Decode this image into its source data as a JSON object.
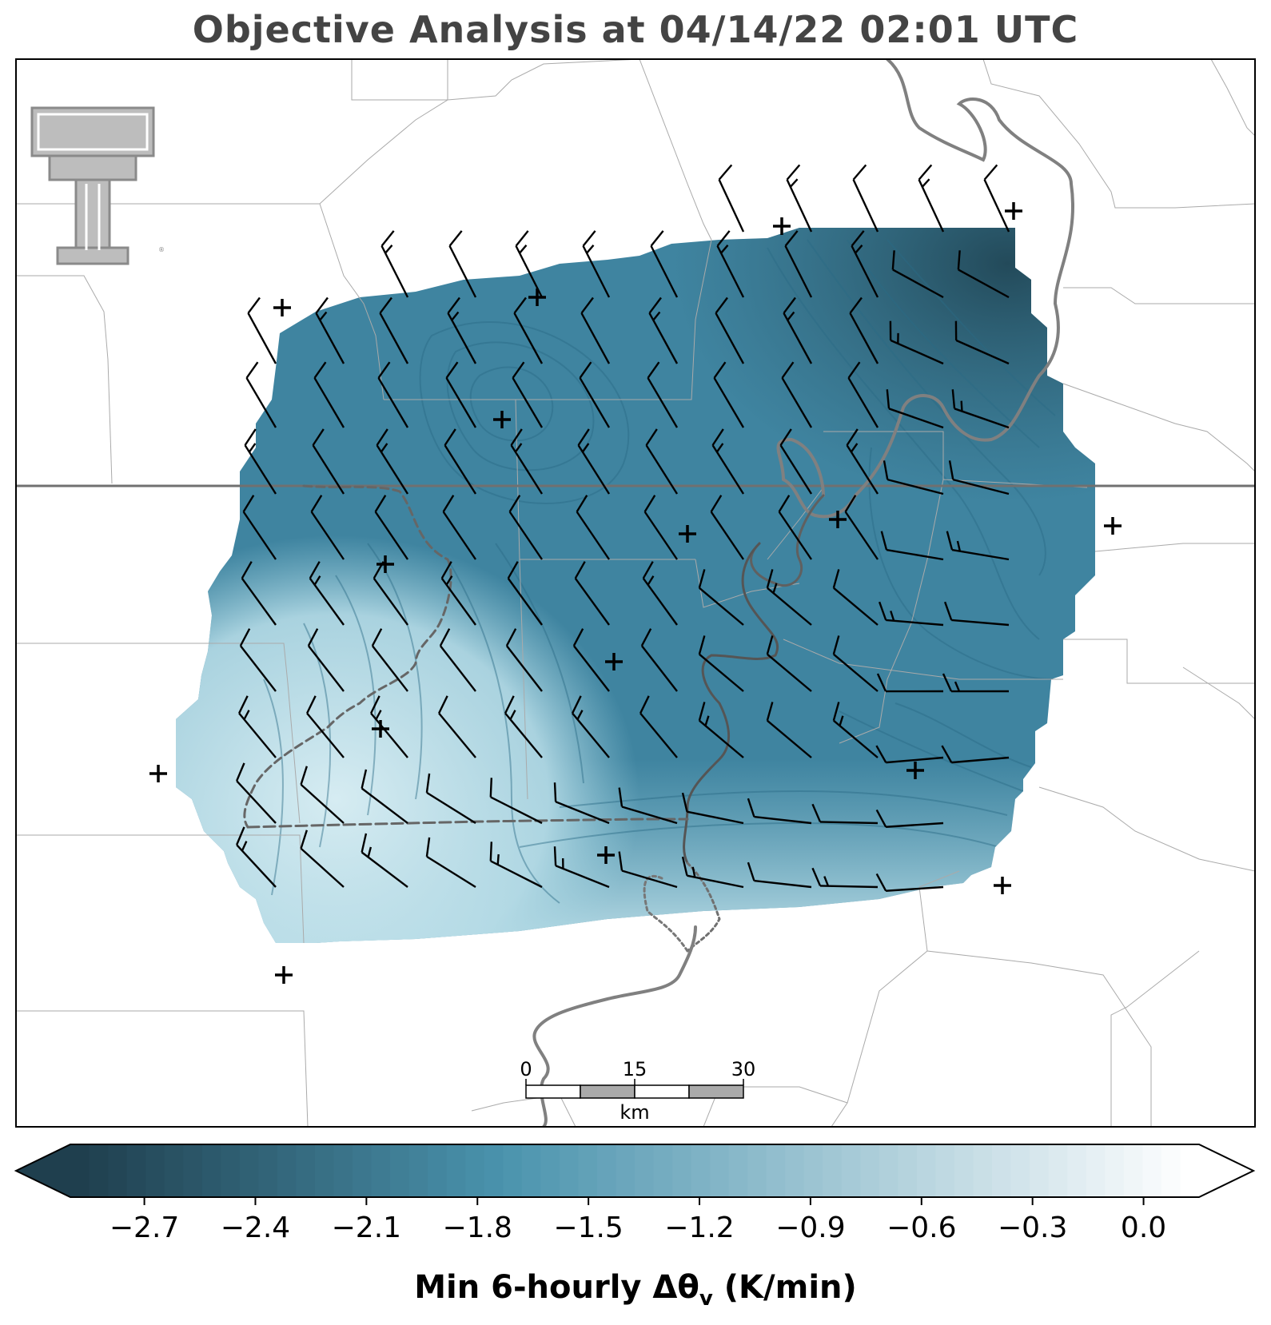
{
  "title": "Objective Analysis at 04/14/22 02:01 UTC",
  "logo": "texas-tech-double-t-logo",
  "scale_bar": {
    "ticks": [
      "0",
      "15",
      "30"
    ],
    "unit": "km"
  },
  "colorbar": {
    "ticks": [
      "−2.7",
      "−2.4",
      "−2.1",
      "−1.8",
      "−1.5",
      "−1.2",
      "−0.9",
      "−0.6",
      "−0.3",
      "0.0"
    ],
    "label_main": "Min 6-hourly Δθ",
    "label_sub": "v",
    "label_unit": " (K/min)",
    "color_dark": "#1f3f4e",
    "color_mid": "#4a93ad",
    "color_light": "#ffffff"
  },
  "colors": {
    "field_dark": "#2e6175",
    "field_mid": "#4791ab",
    "field_light": "#c8e4ec",
    "barb": "#000000",
    "boundary": "#999999",
    "river": "#808080"
  }
}
